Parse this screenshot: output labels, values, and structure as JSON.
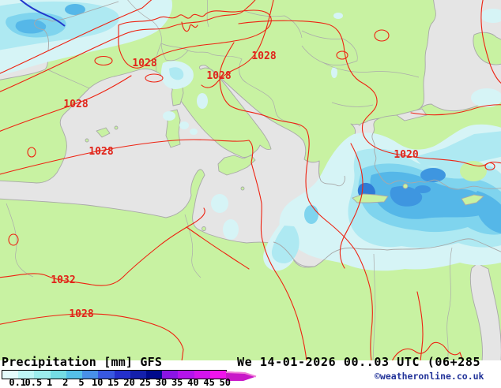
{
  "header": {
    "title": "Precipitation [mm] GFS",
    "datetime": "We 14-01-2026 00..03 UTC (06+285",
    "copyright": "©weatheronline.co.uk"
  },
  "legend": {
    "unit_values": [
      "0.1",
      "0.5",
      "1",
      "2",
      "5",
      "10",
      "15",
      "20",
      "25",
      "30",
      "35",
      "40",
      "45",
      "50"
    ],
    "cell_colors": [
      "#E4FBFB",
      "#BEF6F6",
      "#9CEDED",
      "#74DCE4",
      "#55C0E8",
      "#4890E8",
      "#3858E0",
      "#2430CC",
      "#1420AC",
      "#000A8C",
      "#8A14E4",
      "#B414EC",
      "#D414EC",
      "#F014EC"
    ],
    "overflow_arrow_color": "#C818C8",
    "overflow_arrow_edge_color": "#F07FD8"
  },
  "map": {
    "isobar_labels": [
      {
        "text": "1028"
      },
      {
        "text": "1028"
      },
      {
        "text": "1028"
      },
      {
        "text": "1028"
      },
      {
        "text": "1028"
      },
      {
        "text": "1020"
      },
      {
        "text": "1032"
      },
      {
        "text": "1028"
      }
    ],
    "colors": {
      "sea": "#E5E5E5",
      "land": "#C8F2A2",
      "coastline": "#A8A8A8",
      "isobar_red": "#EE2211",
      "front_blue": "#2238CC",
      "precip_l1": "#D6F4F6",
      "precip_l2": "#AEE9F2",
      "precip_l3": "#7FD4EE",
      "precip_l4": "#55B7E8",
      "precip_l5": "#3E96E0",
      "precip_l6": "#2F7BD6"
    }
  }
}
